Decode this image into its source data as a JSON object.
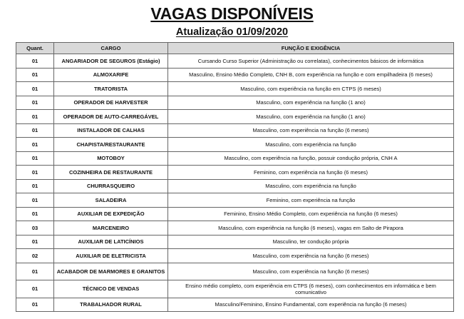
{
  "title": "VAGAS DISPONÍVEIS",
  "subtitle": "Atualização 01/09/2020",
  "table": {
    "headers": [
      "Quant.",
      "CARGO",
      "FUNÇÃO E EXIGÊNCIA"
    ],
    "rows": [
      {
        "quant": "01",
        "cargo": "ANGARIADOR DE SEGUROS (Estágio)",
        "funcao": "Cursando Curso Superior (Administração ou correlatas), conhecimentos básicos de informática"
      },
      {
        "quant": "01",
        "cargo": "ALMOXARIFE",
        "funcao": "Masculino, Ensino Médio Completo, CNH B, com experiência na função e com empilhadeira (6 meses)"
      },
      {
        "quant": "01",
        "cargo": "TRATORISTA",
        "funcao": "Masculino, com experiência na função em CTPS (6 meses)"
      },
      {
        "quant": "01",
        "cargo": "OPERADOR DE HARVESTER",
        "funcao": "Masculino, com experiência na função (1 ano)"
      },
      {
        "quant": "01",
        "cargo": "OPERADOR DE AUTO-CARREGÁVEL",
        "funcao": "Masculino, com experiência na função (1 ano)"
      },
      {
        "quant": "01",
        "cargo": "INSTALADOR DE CALHAS",
        "funcao": "Masculino, com experiência na função (6 meses)"
      },
      {
        "quant": "01",
        "cargo": "CHAPISTA/RESTAURANTE",
        "funcao": "Masculino, com experiência na função"
      },
      {
        "quant": "01",
        "cargo": "MOTOBOY",
        "funcao": "Masculino, com experiência na função, possuir condução própria, CNH A"
      },
      {
        "quant": "01",
        "cargo": "COZINHEIRA DE RESTAURANTE",
        "funcao": "Feminino, com experiência na função (6 meses)"
      },
      {
        "quant": "01",
        "cargo": "CHURRASQUEIRO",
        "funcao": "Masculino, com experiência na função"
      },
      {
        "quant": "01",
        "cargo": "SALADEIRA",
        "funcao": "Feminino, com experiência na função"
      },
      {
        "quant": "01",
        "cargo": "AUXILIAR DE EXPEDIÇÃO",
        "funcao": "Feminino, Ensino Médio Completo, com experiência na função (6 meses)"
      },
      {
        "quant": "03",
        "cargo": "MARCENEIRO",
        "funcao": "Masculino, com experiência na função (6 meses), vagas em Salto de Pirapora"
      },
      {
        "quant": "01",
        "cargo": "AUXILIAR DE LATICÍNIOS",
        "funcao": "Masculino, ter condução própria"
      },
      {
        "quant": "02",
        "cargo": "AUXILIAR DE ELETRICISTA",
        "funcao": "Masculino, com experiência na função (6 meses)"
      },
      {
        "quant": "01",
        "cargo": "ACABADOR DE MARMORES E GRANITOS",
        "funcao": "Masculino, com experiência na função (6 meses)"
      },
      {
        "quant": "01",
        "cargo": "TÉCNICO DE VENDAS",
        "funcao": "Ensino médio completo, com experiência em CTPS (6 meses), com conhecimentos em informática e bem comunicativo"
      },
      {
        "quant": "01",
        "cargo": "TRABALHADOR RURAL",
        "funcao": "Masculino/Feminino, Ensino Fundamental, com experiência na função (6 meses)"
      }
    ]
  }
}
